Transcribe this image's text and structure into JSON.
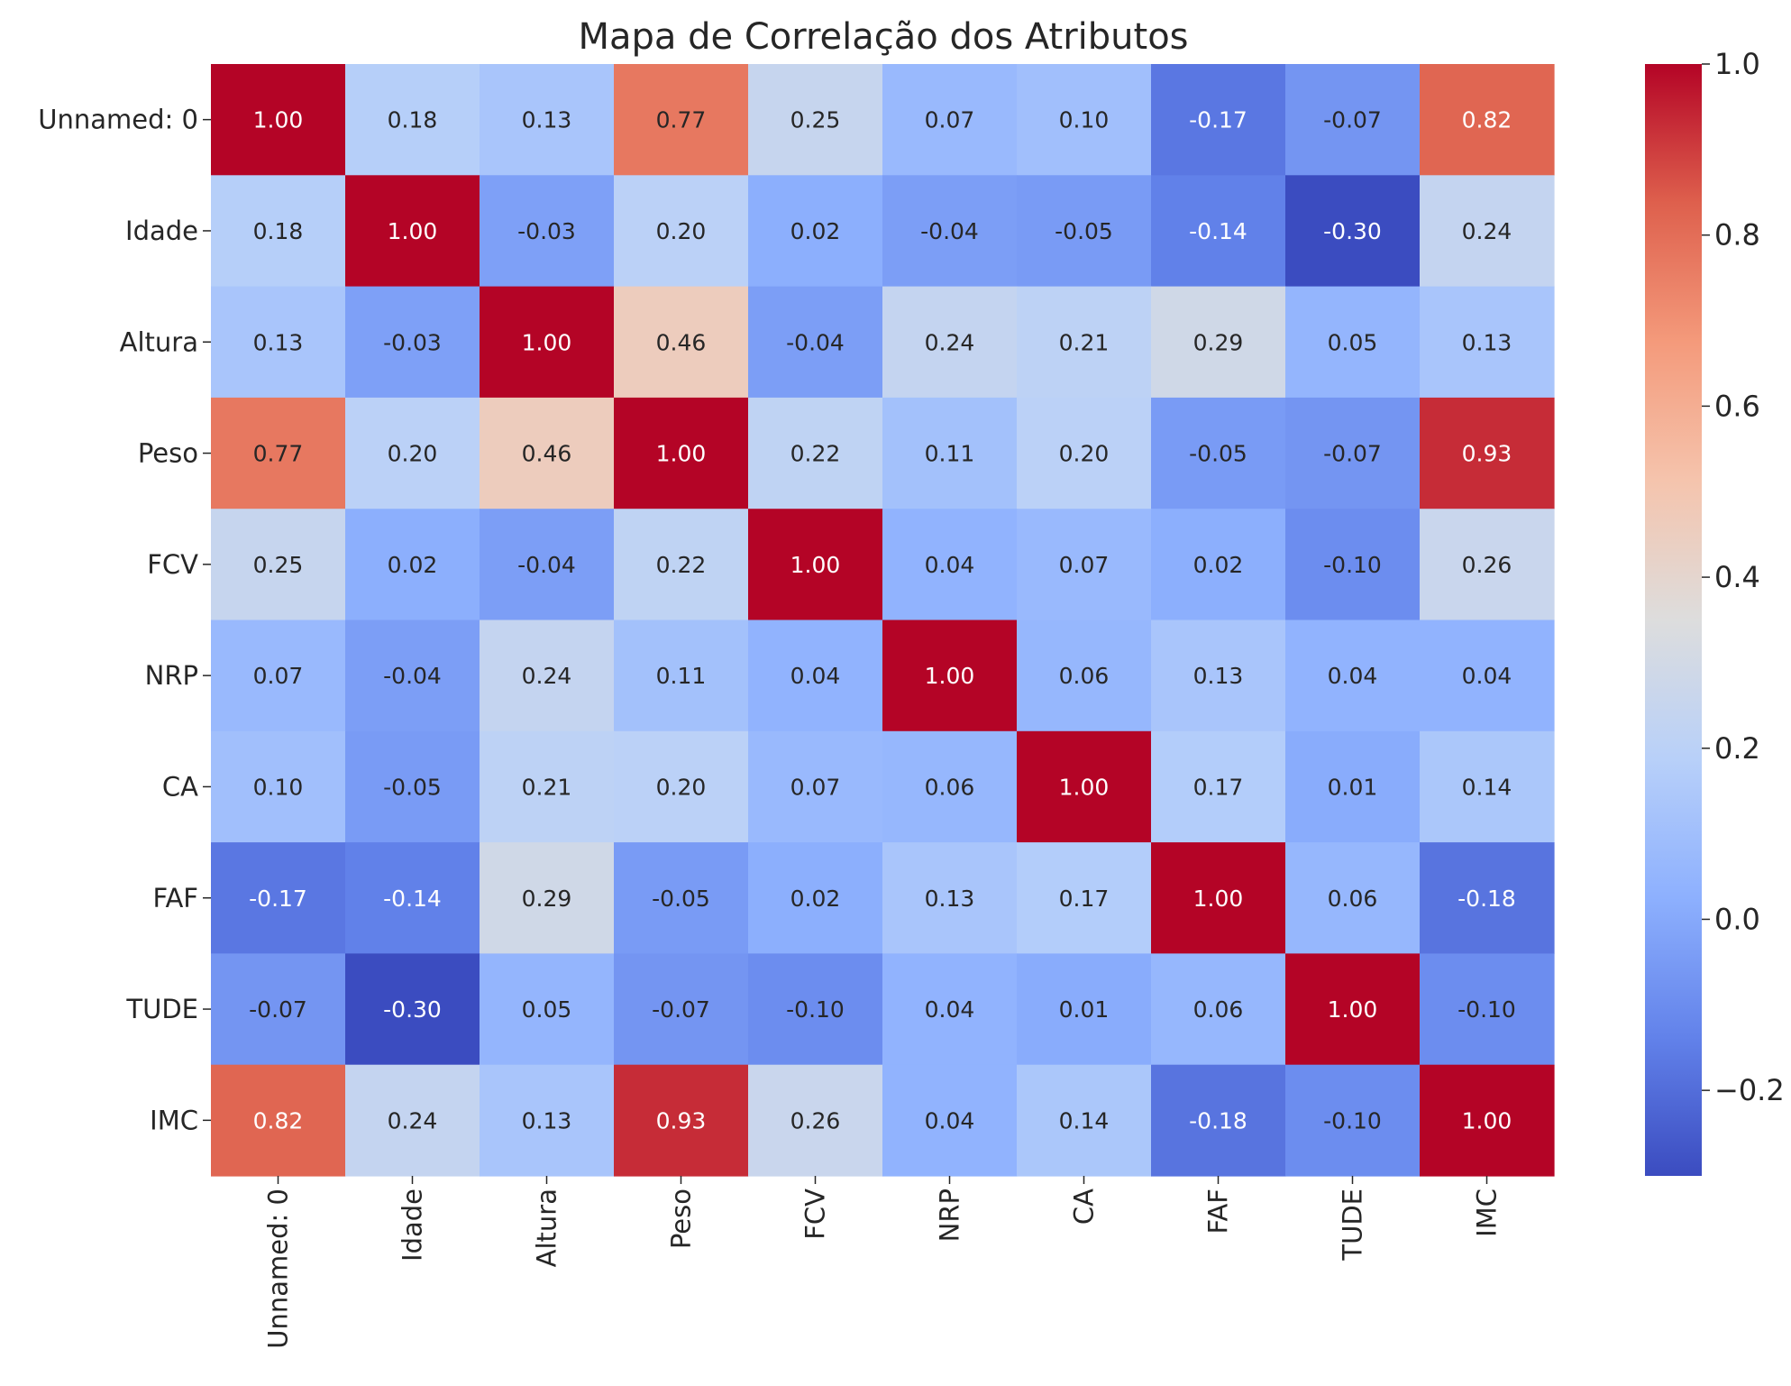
{
  "chart_data": {
    "type": "heatmap",
    "title": "Mapa de Correlação dos Atributos",
    "xlabel": "",
    "ylabel": "",
    "colormap": "coolwarm",
    "labels": [
      "Unnamed: 0",
      "Idade",
      "Altura",
      "Peso",
      "FCV",
      "NRP",
      "CA",
      "FAF",
      "TUDE",
      "IMC"
    ],
    "values": [
      [
        1.0,
        0.18,
        0.13,
        0.77,
        0.25,
        0.07,
        0.1,
        -0.17,
        -0.07,
        0.82
      ],
      [
        0.18,
        1.0,
        -0.03,
        0.2,
        0.02,
        -0.04,
        -0.05,
        -0.14,
        -0.3,
        0.24
      ],
      [
        0.13,
        -0.03,
        1.0,
        0.46,
        -0.04,
        0.24,
        0.21,
        0.29,
        0.05,
        0.13
      ],
      [
        0.77,
        0.2,
        0.46,
        1.0,
        0.22,
        0.11,
        0.2,
        -0.05,
        -0.07,
        0.93
      ],
      [
        0.25,
        0.02,
        -0.04,
        0.22,
        1.0,
        0.04,
        0.07,
        0.02,
        -0.1,
        0.26
      ],
      [
        0.07,
        -0.04,
        0.24,
        0.11,
        0.04,
        1.0,
        0.06,
        0.13,
        0.04,
        0.04
      ],
      [
        0.1,
        -0.05,
        0.21,
        0.2,
        0.07,
        0.06,
        1.0,
        0.17,
        0.01,
        0.14
      ],
      [
        -0.17,
        -0.14,
        0.29,
        -0.05,
        0.02,
        0.13,
        0.17,
        1.0,
        0.06,
        -0.18
      ],
      [
        -0.07,
        -0.3,
        0.05,
        -0.07,
        -0.1,
        0.04,
        0.01,
        0.06,
        1.0,
        -0.1
      ],
      [
        0.82,
        0.24,
        0.13,
        0.93,
        0.26,
        0.04,
        0.14,
        -0.18,
        -0.1,
        1.0
      ]
    ],
    "value_range": [
      -0.3,
      1.0
    ],
    "colorbar_ticks": [
      1.0,
      0.8,
      0.6,
      0.4,
      0.2,
      0.0,
      -0.2
    ],
    "colorbar_tick_labels": [
      "1.0",
      "0.8",
      "0.6",
      "0.4",
      "0.2",
      "0.0",
      "−0.2"
    ],
    "annotation_format": "2 decimals",
    "grid": false
  }
}
